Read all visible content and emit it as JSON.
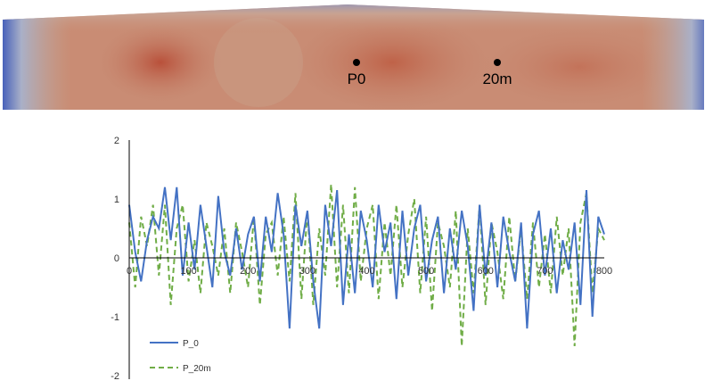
{
  "map": {
    "points": [
      {
        "label": "P0"
      },
      {
        "label": "20m"
      }
    ],
    "colors": {
      "high": "#b9503a",
      "mid": "#c98a70",
      "low": "#3a56b8"
    }
  },
  "chart_data": {
    "type": "line",
    "title": "",
    "xlabel": "",
    "ylabel": "",
    "xlim": [
      0,
      800
    ],
    "ylim": [
      -2,
      2
    ],
    "xticks": [
      "0",
      "100",
      "200",
      "300",
      "400",
      "500",
      "600",
      "700",
      "800"
    ],
    "yticks": [
      "2",
      "1",
      "0",
      "-1",
      "-2"
    ],
    "grid": false,
    "legend": "bottom-left",
    "x": [
      0,
      10,
      20,
      30,
      40,
      50,
      60,
      70,
      80,
      90,
      100,
      110,
      120,
      130,
      140,
      150,
      160,
      170,
      180,
      190,
      200,
      210,
      220,
      230,
      240,
      250,
      260,
      270,
      280,
      290,
      300,
      310,
      320,
      330,
      340,
      350,
      360,
      370,
      380,
      390,
      400,
      410,
      420,
      430,
      440,
      450,
      460,
      470,
      480,
      490,
      500,
      510,
      520,
      530,
      540,
      550,
      560,
      570,
      580,
      590,
      600,
      610,
      620,
      630,
      640,
      650,
      660,
      670,
      680,
      690,
      700,
      710,
      720,
      730,
      740,
      750,
      760,
      770,
      780,
      790,
      800
    ],
    "series": [
      {
        "name": "P_0",
        "color": "#4472c4",
        "dash": "solid",
        "values": [
          0.9,
          0.1,
          -0.4,
          0.3,
          0.7,
          0.5,
          1.2,
          0.3,
          1.2,
          -0.3,
          0.6,
          -0.2,
          0.9,
          0.2,
          -0.5,
          1.05,
          0.1,
          -0.3,
          0.5,
          -0.2,
          0.4,
          0.7,
          -0.4,
          0.7,
          0.1,
          1.1,
          0.4,
          -1.2,
          0.9,
          0.2,
          0.8,
          -0.4,
          -1.2,
          0.9,
          0.2,
          1.15,
          -0.8,
          0.4,
          -0.6,
          0.8,
          0.3,
          -0.5,
          0.9,
          0.1,
          0.6,
          -0.7,
          0.8,
          -0.3,
          0.5,
          0.9,
          -0.4,
          0.3,
          0.7,
          -0.6,
          0.5,
          -0.2,
          0.8,
          0.2,
          -0.9,
          0.9,
          -0.3,
          0.6,
          -0.5,
          0.7,
          0.1,
          -0.4,
          0.6,
          -1.2,
          0.4,
          0.8,
          -0.3,
          0.5,
          -0.6,
          0.3,
          -0.2,
          0.6,
          -0.8,
          1.15,
          -1.0,
          0.7,
          0.4
        ]
      },
      {
        "name": "P_20m",
        "color": "#70ad47",
        "dash": "dashed",
        "values": [
          0.6,
          -0.5,
          0.7,
          0.2,
          0.9,
          -0.3,
          0.9,
          -0.8,
          0.5,
          0.9,
          -0.4,
          0.3,
          -0.6,
          0.6,
          0.2,
          -0.3,
          0.5,
          -0.6,
          0.6,
          0.1,
          -0.5,
          0.7,
          -0.8,
          0.4,
          0.6,
          -0.3,
          0.7,
          -0.4,
          1.1,
          -0.7,
          0.8,
          -0.8,
          0.5,
          -0.3,
          1.25,
          -0.5,
          0.9,
          -0.6,
          1.2,
          -0.4,
          0.5,
          0.9,
          -0.7,
          0.6,
          -0.3,
          0.9,
          -0.5,
          0.4,
          1.0,
          -0.6,
          0.7,
          -0.9,
          0.6,
          0.2,
          -0.5,
          0.8,
          -1.5,
          0.5,
          -0.6,
          0.9,
          -0.8,
          0.6,
          0.1,
          -0.7,
          0.7,
          -0.4,
          0.5,
          -0.7,
          0.6,
          -0.5,
          0.4,
          -0.6,
          0.7,
          -0.3,
          0.5,
          -1.5,
          0.6,
          1.1,
          -0.6,
          0.5,
          0.3
        ]
      }
    ]
  }
}
